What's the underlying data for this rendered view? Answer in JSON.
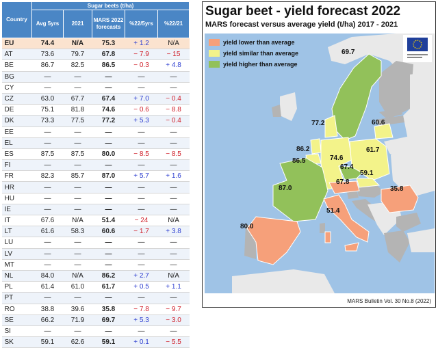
{
  "table": {
    "header_group": "Sugar beets (t/ha)",
    "columns": [
      "Country",
      "Avg 5yrs",
      "2021",
      "MARS 2022 forecasts",
      "%22/5yrs",
      "%22/21"
    ],
    "rows": [
      {
        "country": "EU",
        "avg": "74.4",
        "y2021": "N/A",
        "fc": "75.3",
        "p5": "+ 1.2",
        "p21": "N/A"
      },
      {
        "country": "AT",
        "avg": "73.6",
        "y2021": "79.7",
        "fc": "67.8",
        "p5": "− 7.9",
        "p21": "− 15"
      },
      {
        "country": "BE",
        "avg": "86.7",
        "y2021": "82.5",
        "fc": "86.5",
        "p5": "− 0.3",
        "p21": "+ 4.8"
      },
      {
        "country": "BG",
        "avg": "—",
        "y2021": "—",
        "fc": "—",
        "p5": "—",
        "p21": "—"
      },
      {
        "country": "CY",
        "avg": "—",
        "y2021": "—",
        "fc": "—",
        "p5": "—",
        "p21": "—"
      },
      {
        "country": "CZ",
        "avg": "63.0",
        "y2021": "67.7",
        "fc": "67.4",
        "p5": "+ 7.0",
        "p21": "− 0.4"
      },
      {
        "country": "DE",
        "avg": "75.1",
        "y2021": "81.8",
        "fc": "74.6",
        "p5": "− 0.6",
        "p21": "− 8.8"
      },
      {
        "country": "DK",
        "avg": "73.3",
        "y2021": "77.5",
        "fc": "77.2",
        "p5": "+ 5.3",
        "p21": "− 0.4"
      },
      {
        "country": "EE",
        "avg": "—",
        "y2021": "—",
        "fc": "—",
        "p5": "—",
        "p21": "—"
      },
      {
        "country": "EL",
        "avg": "—",
        "y2021": "—",
        "fc": "—",
        "p5": "—",
        "p21": "—"
      },
      {
        "country": "ES",
        "avg": "87.5",
        "y2021": "87.5",
        "fc": "80.0",
        "p5": "− 8.5",
        "p21": "− 8.5"
      },
      {
        "country": "FI",
        "avg": "—",
        "y2021": "—",
        "fc": "—",
        "p5": "—",
        "p21": "—"
      },
      {
        "country": "FR",
        "avg": "82.3",
        "y2021": "85.7",
        "fc": "87.0",
        "p5": "+ 5.7",
        "p21": "+ 1.6"
      },
      {
        "country": "HR",
        "avg": "—",
        "y2021": "—",
        "fc": "—",
        "p5": "—",
        "p21": "—"
      },
      {
        "country": "HU",
        "avg": "—",
        "y2021": "—",
        "fc": "—",
        "p5": "—",
        "p21": "—"
      },
      {
        "country": "IE",
        "avg": "—",
        "y2021": "—",
        "fc": "—",
        "p5": "—",
        "p21": "—"
      },
      {
        "country": "IT",
        "avg": "67.6",
        "y2021": "N/A",
        "fc": "51.4",
        "p5": "− 24",
        "p21": "N/A"
      },
      {
        "country": "LT",
        "avg": "61.6",
        "y2021": "58.3",
        "fc": "60.6",
        "p5": "− 1.7",
        "p21": "+ 3.8"
      },
      {
        "country": "LU",
        "avg": "—",
        "y2021": "—",
        "fc": "—",
        "p5": "—",
        "p21": "—"
      },
      {
        "country": "LV",
        "avg": "—",
        "y2021": "—",
        "fc": "—",
        "p5": "—",
        "p21": "—"
      },
      {
        "country": "MT",
        "avg": "—",
        "y2021": "—",
        "fc": "—",
        "p5": "—",
        "p21": "—"
      },
      {
        "country": "NL",
        "avg": "84.0",
        "y2021": "N/A",
        "fc": "86.2",
        "p5": "+ 2.7",
        "p21": "N/A"
      },
      {
        "country": "PL",
        "avg": "61.4",
        "y2021": "61.0",
        "fc": "61.7",
        "p5": "+ 0.5",
        "p21": "+ 1.1"
      },
      {
        "country": "PT",
        "avg": "—",
        "y2021": "—",
        "fc": "—",
        "p5": "—",
        "p21": "—"
      },
      {
        "country": "RO",
        "avg": "38.8",
        "y2021": "39.6",
        "fc": "35.8",
        "p5": "− 7.8",
        "p21": "− 9.7"
      },
      {
        "country": "SE",
        "avg": "66.2",
        "y2021": "71.9",
        "fc": "69.7",
        "p5": "+ 5.3",
        "p21": "− 3.0"
      },
      {
        "country": "SI",
        "avg": "—",
        "y2021": "—",
        "fc": "—",
        "p5": "—",
        "p21": "—"
      },
      {
        "country": "SK",
        "avg": "59.1",
        "y2021": "62.6",
        "fc": "59.1",
        "p5": "+ 0.1",
        "p21": "− 5.5"
      }
    ]
  },
  "map": {
    "title": "Sugar beet - yield forecast 2022",
    "subtitle": "MARS forecast versus average yield (t/ha) 2017 - 2021",
    "source": "MARS Bulletin Vol. 30 No.8 (2022)",
    "legend": [
      {
        "label": "yield lower than average",
        "color": "#f6a07a"
      },
      {
        "label": "yield similar than average",
        "color": "#f3f38a"
      },
      {
        "label": "yield higher than average",
        "color": "#92c15a"
      }
    ],
    "colors": {
      "sea": "#9fc3e6",
      "non_eu": "#e9e9e9",
      "no_data": "#b4b4b4"
    },
    "labels": {
      "SE": "69.7",
      "DK": "77.2",
      "LT": "60.6",
      "NL": "86.2",
      "BE": "86.5",
      "DE": "74.6",
      "PL": "61.7",
      "CZ": "67.4",
      "SK": "59.1",
      "AT": "67.8",
      "FR": "87.0",
      "RO": "35.8",
      "IT": "51.4",
      "ES": "80.0"
    }
  }
}
